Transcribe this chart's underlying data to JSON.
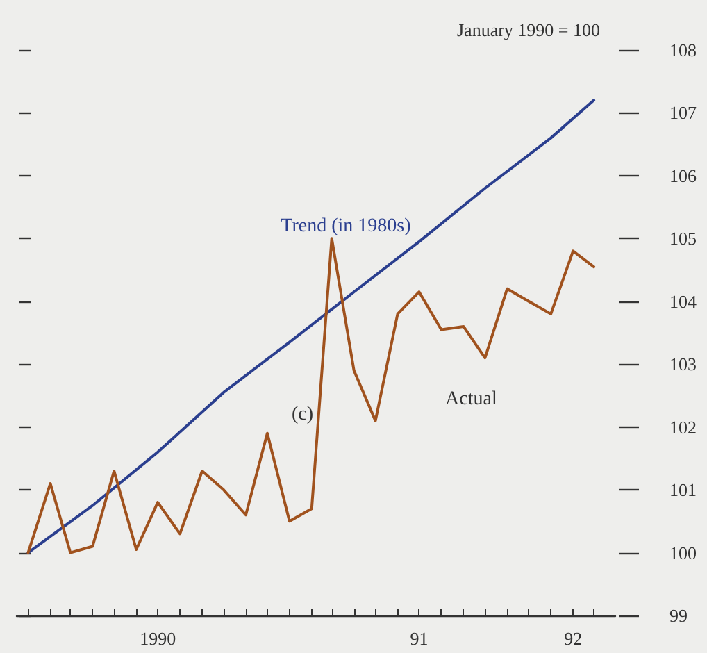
{
  "chart_data": {
    "type": "line",
    "ylabel": "January 1990 = 100",
    "x": [
      "1990-01",
      "1990-02",
      "1990-03",
      "1990-04",
      "1990-05",
      "1990-06",
      "1990-07",
      "1990-08",
      "1990-09",
      "1990-10",
      "1990-11",
      "1990-12",
      "1991-01",
      "1991-02",
      "1991-03",
      "1991-04",
      "1991-05",
      "1991-06",
      "1991-07",
      "1991-08",
      "1991-09",
      "1991-10",
      "1991-11",
      "1991-12",
      "1992-01",
      "1992-02",
      "1992-03"
    ],
    "series": [
      {
        "name": "Trend (in 1980s)",
        "color": "#2b3f8f",
        "x": [
          "1990-01",
          "1990-04",
          "1990-07",
          "1990-10",
          "1991-01",
          "1991-04",
          "1991-07",
          "1991-10",
          "1992-01",
          "1992-03"
        ],
        "values": [
          100,
          100.75,
          101.6,
          102.55,
          103.35,
          104.15,
          104.95,
          105.8,
          106.6,
          107.2
        ]
      },
      {
        "name": "Actual",
        "color": "#a0521e",
        "values": [
          100.0,
          101.1,
          100.0,
          100.1,
          101.3,
          100.05,
          100.8,
          100.3,
          101.3,
          101.0,
          100.6,
          101.9,
          100.5,
          100.7,
          105.0,
          102.9,
          102.1,
          103.8,
          104.15,
          103.55,
          103.6,
          103.1,
          104.2,
          104.0,
          103.8,
          104.8,
          104.55
        ]
      }
    ],
    "annotations": [
      {
        "text": "(c)",
        "x": "1991-02-11",
        "y": 102.2
      }
    ],
    "xlim": [
      "1989-12-16",
      "1992-03-31"
    ],
    "xticks": [
      {
        "value": "1990-01",
        "label": null
      },
      {
        "value": "1990-02",
        "label": null
      },
      {
        "value": "1990-03",
        "label": null
      },
      {
        "value": "1990-04",
        "label": null
      },
      {
        "value": "1990-05",
        "label": null
      },
      {
        "value": "1990-06",
        "label": null
      },
      {
        "value": "1990-07",
        "label": "1990"
      },
      {
        "value": "1990-08",
        "label": null
      },
      {
        "value": "1990-09",
        "label": null
      },
      {
        "value": "1990-10",
        "label": null
      },
      {
        "value": "1990-11",
        "label": null
      },
      {
        "value": "1990-12",
        "label": null
      },
      {
        "value": "1991-01",
        "label": null
      },
      {
        "value": "1991-02",
        "label": null
      },
      {
        "value": "1991-03",
        "label": null
      },
      {
        "value": "1991-04",
        "label": null
      },
      {
        "value": "1991-05",
        "label": null
      },
      {
        "value": "1991-06",
        "label": null
      },
      {
        "value": "1991-07",
        "label": "91"
      },
      {
        "value": "1991-08",
        "label": null
      },
      {
        "value": "1991-09",
        "label": null
      },
      {
        "value": "1991-10",
        "label": null
      },
      {
        "value": "1991-11",
        "label": null
      },
      {
        "value": "1991-12",
        "label": null
      },
      {
        "value": "1992-01",
        "label": null
      },
      {
        "value": "1992-02",
        "label": "92"
      },
      {
        "value": "1992-03",
        "label": null
      }
    ],
    "ylim": [
      99,
      108
    ],
    "yticks": [
      99,
      100,
      101,
      102,
      103,
      104,
      105,
      106,
      107,
      108
    ],
    "grid": false,
    "legend": false,
    "marker": "none",
    "line_style": "solid"
  }
}
